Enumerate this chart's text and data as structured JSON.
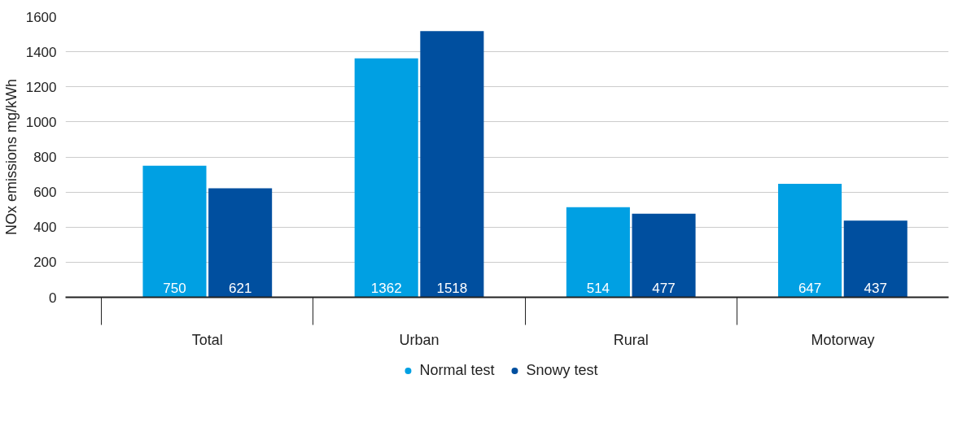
{
  "chart_data": {
    "type": "bar",
    "ylabel": "NOx emissions mg/kWh",
    "categories": [
      "Total",
      "Urban",
      "Rural",
      "Motorway"
    ],
    "series": [
      {
        "name": "Normal test",
        "color": "#00a0e3",
        "values": [
          750,
          1362,
          514,
          647
        ]
      },
      {
        "name": "Snowy test",
        "color": "#004f9f",
        "values": [
          621,
          1518,
          477,
          437
        ]
      }
    ],
    "ylim": [
      0,
      1600
    ],
    "yticks": [
      0,
      200,
      400,
      600,
      800,
      1000,
      1200,
      1400,
      1600
    ],
    "grid": "y",
    "legend": "bottom",
    "data_labels": true
  }
}
